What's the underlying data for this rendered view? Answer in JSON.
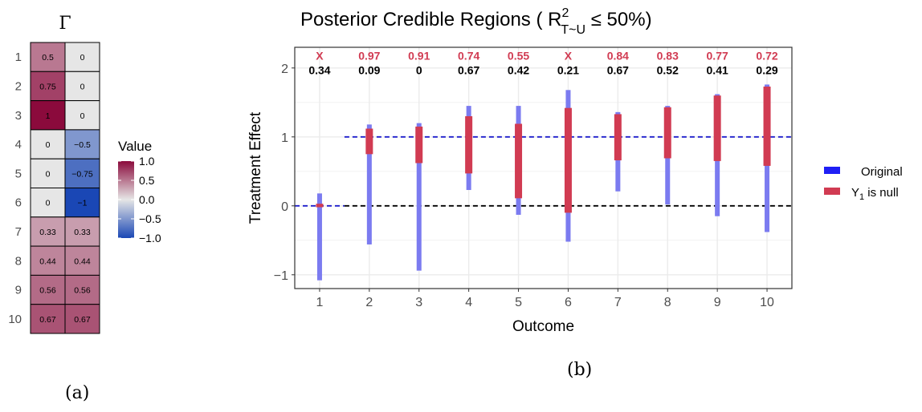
{
  "captions": {
    "a": "(a)",
    "b": "(b)"
  },
  "chart_data": [
    {
      "type": "heatmap",
      "title": "Γ",
      "rows": [
        "1",
        "2",
        "3",
        "4",
        "5",
        "6",
        "7",
        "8",
        "9",
        "10"
      ],
      "columns": [
        1,
        2
      ],
      "values": [
        [
          0.5,
          0
        ],
        [
          0.75,
          0
        ],
        [
          1,
          0
        ],
        [
          0,
          -0.5
        ],
        [
          0,
          -0.75
        ],
        [
          0,
          -1
        ],
        [
          0.33,
          0.33
        ],
        [
          0.44,
          0.44
        ],
        [
          0.56,
          0.56
        ],
        [
          0.67,
          0.67
        ]
      ],
      "cell_labels": [
        [
          "0.5",
          "0"
        ],
        [
          "0.75",
          "0"
        ],
        [
          "1",
          "0"
        ],
        [
          "0",
          "−0.5"
        ],
        [
          "0",
          "−0.75"
        ],
        [
          "0",
          "−1"
        ],
        [
          "0.33",
          "0.33"
        ],
        [
          "0.44",
          "0.44"
        ],
        [
          "0.56",
          "0.56"
        ],
        [
          "0.67",
          "0.67"
        ]
      ],
      "legend": {
        "title": "Value",
        "ticks": [
          1.0,
          0.5,
          0.0,
          -0.5,
          -1.0
        ],
        "tick_labels": [
          "1.0",
          "0.5",
          "0.0",
          "−0.5",
          "−1.0"
        ],
        "range": [
          -1,
          1
        ],
        "colors": {
          "low": "#1a47b5",
          "mid": "#e6e6e6",
          "high": "#8b0a3c"
        }
      }
    },
    {
      "type": "interval",
      "title": "Posterior Credible Regions ( R",
      "title_sup": "2",
      "title_sub": "T~U",
      "title_tail": " ≤  50%)",
      "xlabel": "Outcome",
      "ylabel": "Treatment Effect",
      "categories": [
        "1",
        "2",
        "3",
        "4",
        "5",
        "6",
        "7",
        "8",
        "9",
        "10"
      ],
      "ylim": [
        -1.2,
        2.3
      ],
      "yticks": [
        -1,
        0,
        1,
        2
      ],
      "ytick_labels": [
        "−1",
        "0",
        "1",
        "2"
      ],
      "grid": true,
      "series": [
        {
          "name": "Original",
          "color": "#7b7bf0",
          "legend_color": "#1f1ff5",
          "intervals": [
            [
              -1.08,
              0.18
            ],
            [
              -0.56,
              1.18
            ],
            [
              -0.94,
              1.2
            ],
            [
              0.23,
              1.45
            ],
            [
              -0.13,
              1.45
            ],
            [
              -0.52,
              1.68
            ],
            [
              0.21,
              1.36
            ],
            [
              0.02,
              1.45
            ],
            [
              -0.15,
              1.62
            ],
            [
              -0.38,
              1.76
            ]
          ]
        },
        {
          "name": "Y",
          "name_sub": "1",
          "name_tail": " is null",
          "color": "#d13b52",
          "legend_color": "#d13b52",
          "intervals": [
            [
              -0.02,
              0.03
            ],
            [
              0.75,
              1.12
            ],
            [
              0.62,
              1.15
            ],
            [
              0.47,
              1.3
            ],
            [
              0.11,
              1.19
            ],
            [
              -0.1,
              1.42
            ],
            [
              0.66,
              1.33
            ],
            [
              0.69,
              1.43
            ],
            [
              0.65,
              1.6
            ],
            [
              0.58,
              1.73
            ]
          ]
        }
      ],
      "reference_lines": [
        {
          "y": 1,
          "x_from": 1.5,
          "x_to": 10.5,
          "style": "dashed",
          "color": "#1f1fcc"
        },
        {
          "y": 0,
          "x_from": 0.5,
          "x_to": 1.5,
          "style": "dashed",
          "color": "#1f1fcc"
        },
        {
          "y": 0,
          "x_from": 1.5,
          "x_to": 10.5,
          "style": "dashed",
          "color": "#000000"
        }
      ],
      "annotations_top": [
        "X",
        "0.97",
        "0.91",
        "0.74",
        "0.55",
        "X",
        "0.84",
        "0.83",
        "0.77",
        "0.72"
      ],
      "annotations_top_color": "#d13b52",
      "annotations_bottom": [
        "0.34",
        "0.09",
        "0",
        "0.67",
        "0.42",
        "0.21",
        "0.67",
        "0.52",
        "0.41",
        "0.29"
      ]
    }
  ]
}
